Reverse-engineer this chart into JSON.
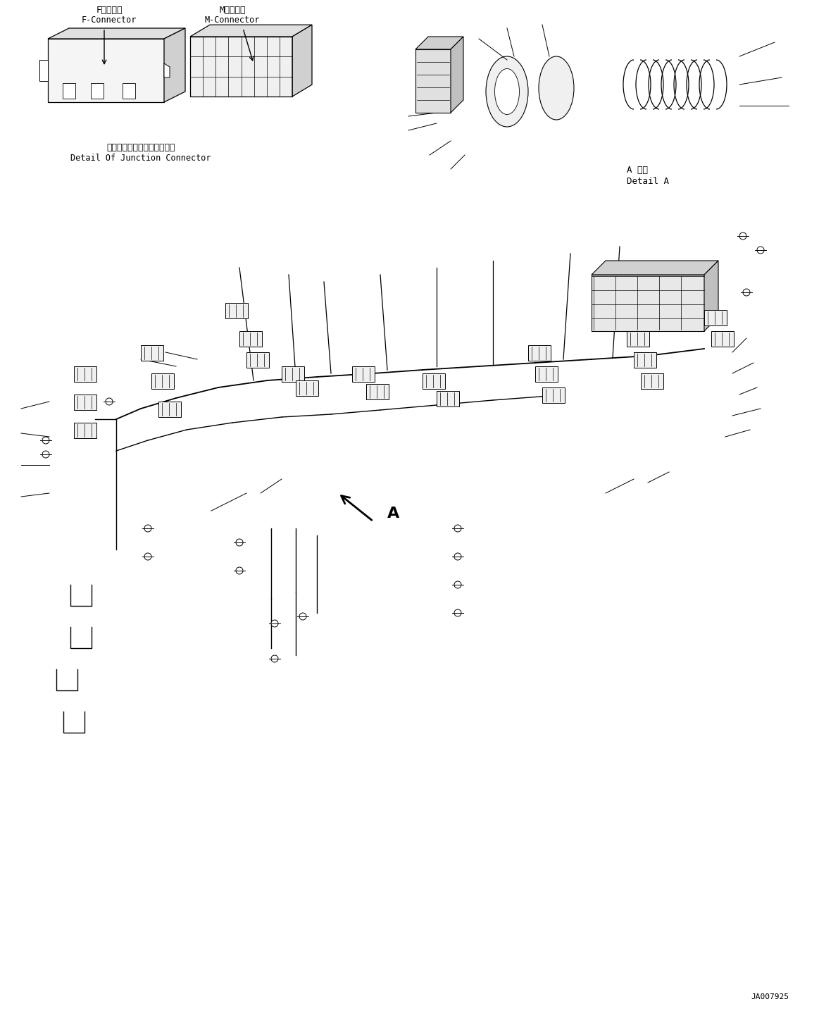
{
  "background_color": "#ffffff",
  "fig_width": 11.63,
  "fig_height": 14.45,
  "dpi": 100,
  "title_code": "JA007925",
  "labels": {
    "f_connector_jp": "Fコネクタ",
    "f_connector_en": "F-Connector",
    "m_connector_jp": "Mコネクタ",
    "m_connector_en": "M-Connector",
    "junction_jp": "ジャンクションコネクタ詳細",
    "junction_en": "Detail Of Junction Connector",
    "detail_a_jp": "A 詳細",
    "detail_a_en": "Detail A",
    "label_a": "A"
  },
  "line_color": "#000000",
  "text_color": "#000000",
  "font_size_label": 9,
  "font_size_code": 8
}
